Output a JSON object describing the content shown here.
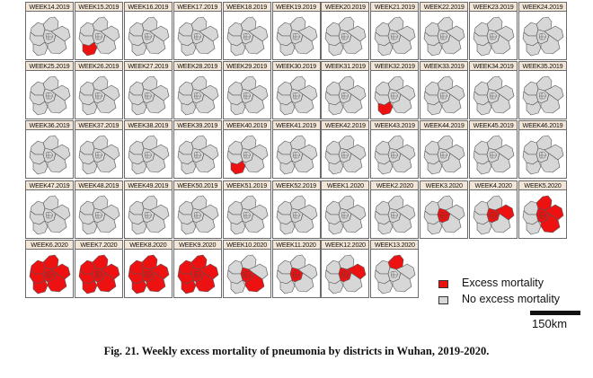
{
  "figure": {
    "caption": "Fig. 21. Weekly excess mortality of pneumonia by districts in Wuhan, 2019-2020.",
    "colors": {
      "excess": "#ee1111",
      "no_excess": "#d7d7d7",
      "border": "#555555"
    },
    "legend": [
      {
        "label": "Excess mortality",
        "color": "#ee1111"
      },
      {
        "label": "No excess mortality",
        "color": "#d7d7d7"
      }
    ],
    "scale_label": "150km",
    "panels": [
      {
        "label": "WEEK14.2019",
        "red": []
      },
      {
        "label": "WEEK15.2019",
        "red": [
          "southwest"
        ]
      },
      {
        "label": "WEEK16.2019",
        "red": []
      },
      {
        "label": "WEEK17.2019",
        "red": []
      },
      {
        "label": "WEEK18.2019",
        "red": []
      },
      {
        "label": "WEEK19.2019",
        "red": []
      },
      {
        "label": "WEEK20.2019",
        "red": []
      },
      {
        "label": "WEEK21.2019",
        "red": []
      },
      {
        "label": "WEEK22.2019",
        "red": []
      },
      {
        "label": "WEEK23.2019",
        "red": []
      },
      {
        "label": "WEEK24.2019",
        "red": []
      },
      {
        "label": "WEEK25.2019",
        "red": []
      },
      {
        "label": "WEEK26.2019",
        "red": []
      },
      {
        "label": "WEEK27.2019",
        "red": []
      },
      {
        "label": "WEEK28.2019",
        "red": []
      },
      {
        "label": "WEEK29.2019",
        "red": []
      },
      {
        "label": "WEEK30.2019",
        "red": []
      },
      {
        "label": "WEEK31.2019",
        "red": []
      },
      {
        "label": "WEEK32.2019",
        "red": [
          "southwest"
        ]
      },
      {
        "label": "WEEK33.2019",
        "red": []
      },
      {
        "label": "WEEK34.2019",
        "red": []
      },
      {
        "label": "WEEK35.2019",
        "red": []
      },
      {
        "label": "WEEK36.2019",
        "red": []
      },
      {
        "label": "WEEK37.2019",
        "red": []
      },
      {
        "label": "WEEK38.2019",
        "red": []
      },
      {
        "label": "WEEK39.2019",
        "red": []
      },
      {
        "label": "WEEK40.2019",
        "red": [
          "southwest"
        ]
      },
      {
        "label": "WEEK41.2019",
        "red": []
      },
      {
        "label": "WEEK42.2019",
        "red": []
      },
      {
        "label": "WEEK43.2019",
        "red": []
      },
      {
        "label": "WEEK44.2019",
        "red": []
      },
      {
        "label": "WEEK45.2019",
        "red": []
      },
      {
        "label": "WEEK46.2019",
        "red": []
      },
      {
        "label": "WEEK47.2019",
        "red": []
      },
      {
        "label": "WEEK48.2019",
        "red": []
      },
      {
        "label": "WEEK49.2019",
        "red": []
      },
      {
        "label": "WEEK50.2019",
        "red": []
      },
      {
        "label": "WEEK51.2019",
        "red": []
      },
      {
        "label": "WEEK52.2019",
        "red": []
      },
      {
        "label": "WEEK1.2020",
        "red": []
      },
      {
        "label": "WEEK2.2020",
        "red": []
      },
      {
        "label": "WEEK3.2020",
        "red": [
          "center"
        ]
      },
      {
        "label": "WEEK4.2020",
        "red": [
          "center",
          "east"
        ]
      },
      {
        "label": "WEEK5.2020",
        "red": [
          "center",
          "east",
          "southeast",
          "north"
        ]
      },
      {
        "label": "WEEK6.2020",
        "red": [
          "center",
          "east",
          "southeast",
          "north",
          "northwest",
          "west",
          "southwest"
        ]
      },
      {
        "label": "WEEK7.2020",
        "red": [
          "center",
          "east",
          "southeast",
          "north",
          "northwest",
          "west",
          "southwest"
        ]
      },
      {
        "label": "WEEK8.2020",
        "red": [
          "center",
          "east",
          "southeast",
          "north",
          "northwest",
          "west",
          "southwest"
        ]
      },
      {
        "label": "WEEK9.2020",
        "red": [
          "center",
          "east",
          "southeast",
          "north",
          "northwest",
          "west",
          "southwest"
        ]
      },
      {
        "label": "WEEK10.2020",
        "red": [
          "center",
          "southeast"
        ]
      },
      {
        "label": "WEEK11.2020",
        "red": [
          "center"
        ]
      },
      {
        "label": "WEEK12.2020",
        "red": [
          "center",
          "east"
        ]
      },
      {
        "label": "WEEK13.2020",
        "red": [
          "north"
        ]
      }
    ]
  }
}
